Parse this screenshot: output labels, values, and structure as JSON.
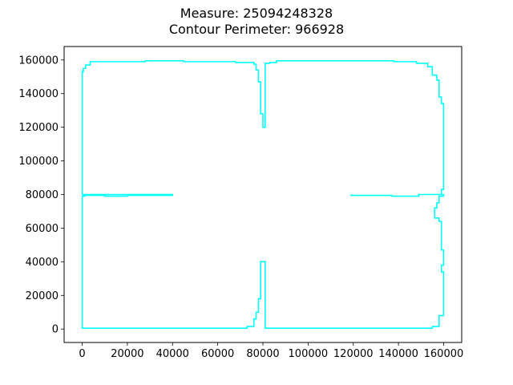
{
  "title": {
    "line1": "Measure: 25094248328",
    "line2": "Contour Perimeter: 966928"
  },
  "chart_data": {
    "type": "line",
    "xlabel": "",
    "ylabel": "",
    "xlim": [
      -8000,
      168000
    ],
    "ylim": [
      -8000,
      168000
    ],
    "xticks": [
      0,
      20000,
      40000,
      60000,
      80000,
      100000,
      120000,
      140000,
      160000
    ],
    "yticks": [
      0,
      20000,
      40000,
      60000,
      80000,
      100000,
      120000,
      140000,
      160000
    ],
    "grid": false,
    "legend": "none",
    "line_color": "#00ffff",
    "series": [
      {
        "x": [
          0,
          0,
          500,
          500,
          1500,
          1500,
          3500,
          3500,
          28000,
          28000,
          40000,
          40000,
          45000,
          45000,
          68000,
          68000,
          76000,
          76000,
          77000,
          77000,
          78000,
          78000,
          79000,
          79000,
          80000,
          80000,
          81000,
          81000,
          83000,
          83000,
          86000,
          86000,
          98000,
          98000,
          138000,
          138000,
          148000,
          148000,
          153000,
          153000,
          155000,
          155000,
          157000,
          157000,
          158000,
          158000,
          159000,
          159000,
          160000,
          160000,
          159000,
          159000,
          160000,
          160000,
          158000,
          158000,
          157000,
          157000,
          156000,
          156000,
          158000,
          158000,
          159000,
          159000,
          160000,
          160000,
          159000,
          159000,
          160000,
          160000,
          158000,
          158000,
          155000,
          155000,
          148000,
          148000,
          81000,
          81000,
          80000,
          80000,
          79000,
          79000,
          78000,
          78000,
          77000,
          77000,
          76000,
          76000,
          73000,
          73000,
          0,
          0,
          0,
          0,
          1000,
          1000,
          10000,
          10000,
          20000,
          20000,
          40000,
          40000,
          0,
          0
        ],
        "y": [
          80000,
          153000,
          153000,
          155000,
          155000,
          157000,
          157000,
          159000,
          159000,
          159500,
          159500,
          159500,
          159500,
          159000,
          159000,
          158500,
          158500,
          157500,
          157500,
          154000,
          154000,
          147000,
          147000,
          128000,
          128000,
          120000,
          120000,
          158000,
          158000,
          158500,
          158500,
          159500,
          159500,
          159500,
          159500,
          159000,
          159000,
          158000,
          158000,
          156000,
          156000,
          151000,
          151000,
          148000,
          148000,
          138000,
          138000,
          134000,
          134000,
          83000,
          83000,
          80000,
          80000,
          79000,
          79000,
          75000,
          75000,
          72000,
          72000,
          66000,
          66000,
          64000,
          64000,
          47000,
          47000,
          38000,
          38000,
          34000,
          34000,
          8000,
          8000,
          1500,
          1500,
          500,
          500,
          500,
          500,
          40000,
          40000,
          40000,
          40000,
          18000,
          18000,
          10000,
          10000,
          6000,
          6000,
          1500,
          1500,
          500,
          500,
          500,
          76000,
          79000,
          79000,
          79500,
          79500,
          79000,
          79000,
          79500,
          79500,
          80000,
          80000,
          80000
        ],
        "secondary_x": [
          119000,
          119000,
          137000,
          137000,
          149000,
          149000,
          159000
        ],
        "secondary_y": [
          80000,
          79500,
          79500,
          79000,
          79000,
          80000,
          80000
        ]
      }
    ]
  }
}
